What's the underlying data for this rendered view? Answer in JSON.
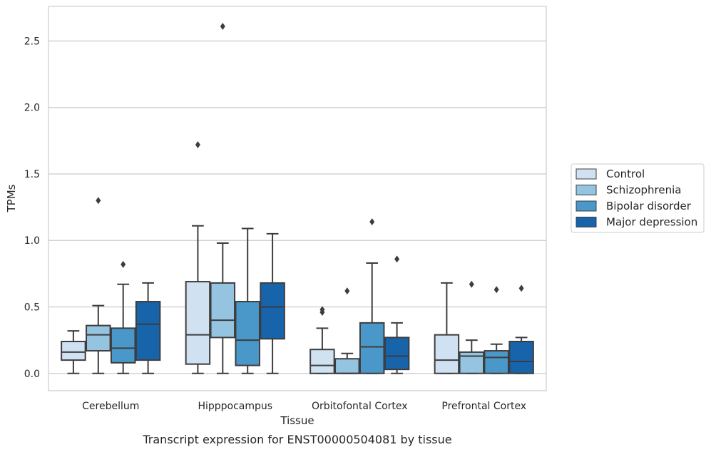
{
  "caption": "Transcript expression for ENST00000504081 by tissue",
  "chart_data": {
    "type": "box",
    "title": "",
    "xlabel": "Tissue",
    "ylabel": "TPMs",
    "ylim": [
      -0.13,
      2.76
    ],
    "yticks": [
      0.0,
      0.5,
      1.0,
      1.5,
      2.0,
      2.5
    ],
    "ytick_labels": [
      "0.0",
      "0.5",
      "1.0",
      "1.5",
      "2.0",
      "2.5"
    ],
    "grid": "horizontal",
    "legend_position": "right",
    "categories": [
      "Cerebellum",
      "Hipppocampus",
      "Orbitofontal Cortex",
      "Prefrontal Cortex"
    ],
    "series": [
      {
        "name": "Control",
        "color": "#d0e1f2",
        "boxes": [
          {
            "whislo": 0.0,
            "q1": 0.1,
            "med": 0.16,
            "q3": 0.24,
            "whishi": 0.32,
            "fliers": []
          },
          {
            "whislo": 0.0,
            "q1": 0.07,
            "med": 0.29,
            "q3": 0.69,
            "whishi": 1.11,
            "fliers": [
              1.72
            ]
          },
          {
            "whislo": 0.0,
            "q1": 0.0,
            "med": 0.06,
            "q3": 0.18,
            "whishi": 0.34,
            "fliers": [
              0.46,
              0.48
            ]
          },
          {
            "whislo": 0.0,
            "q1": 0.0,
            "med": 0.1,
            "q3": 0.29,
            "whishi": 0.68,
            "fliers": []
          }
        ]
      },
      {
        "name": "Schizophrenia",
        "color": "#94c4df",
        "boxes": [
          {
            "whislo": 0.0,
            "q1": 0.17,
            "med": 0.29,
            "q3": 0.36,
            "whishi": 0.51,
            "fliers": [
              1.3
            ]
          },
          {
            "whislo": 0.0,
            "q1": 0.27,
            "med": 0.4,
            "q3": 0.68,
            "whishi": 0.98,
            "fliers": [
              2.61
            ]
          },
          {
            "whislo": 0.0,
            "q1": 0.0,
            "med": 0.0,
            "q3": 0.11,
            "whishi": 0.15,
            "fliers": [
              0.62
            ]
          },
          {
            "whislo": 0.0,
            "q1": 0.0,
            "med": 0.13,
            "q3": 0.16,
            "whishi": 0.25,
            "fliers": [
              0.67
            ]
          }
        ]
      },
      {
        "name": "Bipolar disorder",
        "color": "#4a98c9",
        "boxes": [
          {
            "whislo": 0.0,
            "q1": 0.08,
            "med": 0.19,
            "q3": 0.34,
            "whishi": 0.67,
            "fliers": [
              0.82
            ]
          },
          {
            "whislo": 0.0,
            "q1": 0.06,
            "med": 0.25,
            "q3": 0.54,
            "whishi": 1.09,
            "fliers": []
          },
          {
            "whislo": 0.0,
            "q1": 0.0,
            "med": 0.2,
            "q3": 0.38,
            "whishi": 0.83,
            "fliers": [
              1.14
            ]
          },
          {
            "whislo": 0.0,
            "q1": 0.0,
            "med": 0.12,
            "q3": 0.17,
            "whishi": 0.22,
            "fliers": [
              0.63
            ]
          }
        ]
      },
      {
        "name": "Major depression",
        "color": "#1764ab",
        "boxes": [
          {
            "whislo": 0.0,
            "q1": 0.1,
            "med": 0.37,
            "q3": 0.54,
            "whishi": 0.68,
            "fliers": []
          },
          {
            "whislo": 0.0,
            "q1": 0.26,
            "med": 0.5,
            "q3": 0.68,
            "whishi": 1.05,
            "fliers": []
          },
          {
            "whislo": 0.0,
            "q1": 0.03,
            "med": 0.13,
            "q3": 0.27,
            "whishi": 0.38,
            "fliers": [
              0.86
            ]
          },
          {
            "whislo": 0.0,
            "q1": 0.0,
            "med": 0.09,
            "q3": 0.24,
            "whishi": 0.27,
            "fliers": [
              0.64
            ]
          }
        ]
      }
    ]
  }
}
